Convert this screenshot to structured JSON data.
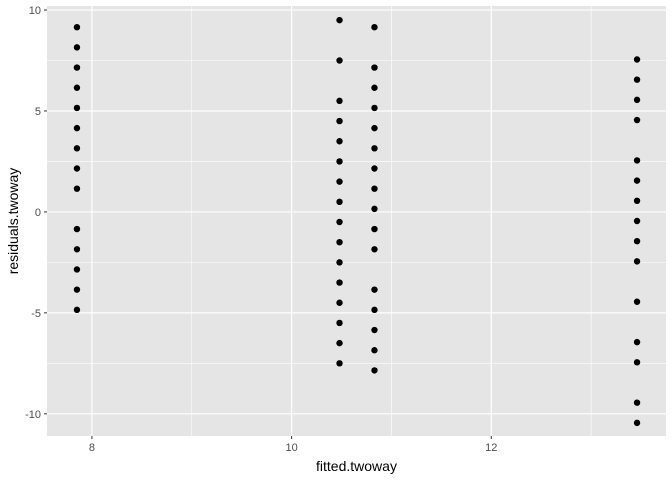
{
  "chart_data": {
    "type": "scatter",
    "xlabel": "fitted.twoway",
    "ylabel": "residuals.twoway",
    "xlim": [
      7.55,
      13.75
    ],
    "ylim": [
      -11.1,
      10.2
    ],
    "x_ticks": [
      8,
      10,
      12
    ],
    "x_tick_labels": [
      "8",
      "10",
      "12"
    ],
    "y_ticks": [
      -10,
      -5,
      0,
      5,
      10
    ],
    "y_tick_labels": [
      "-10",
      "-5",
      "0",
      "5",
      "10"
    ],
    "grid": true,
    "colors": {
      "panel": "#e5e5e5",
      "grid": "#ffffff",
      "point": "#000000",
      "tick_text": "#4d4d4d"
    },
    "series": [
      {
        "x": 7.85,
        "y": [
          9.15,
          8.15,
          7.15,
          6.15,
          5.15,
          4.15,
          3.15,
          2.15,
          1.15,
          -0.85,
          -1.85,
          -2.85,
          -3.85,
          -4.85
        ]
      },
      {
        "x": 10.48,
        "y": [
          9.5,
          7.5,
          5.5,
          4.5,
          3.5,
          2.5,
          1.5,
          0.5,
          -0.5,
          -1.5,
          -2.5,
          -3.5,
          -4.5,
          -5.5,
          -6.5,
          -7.5
        ]
      },
      {
        "x": 10.83,
        "y": [
          9.15,
          7.15,
          6.15,
          5.15,
          4.15,
          3.15,
          2.15,
          1.15,
          0.15,
          -0.85,
          -1.85,
          -3.85,
          -4.85,
          -5.85,
          -6.85,
          -7.85
        ]
      },
      {
        "x": 13.46,
        "y": [
          7.55,
          6.55,
          5.55,
          4.55,
          2.55,
          1.55,
          0.55,
          -0.45,
          -1.45,
          -2.45,
          -4.45,
          -6.45,
          -7.45,
          -9.45,
          -10.45
        ]
      }
    ]
  }
}
